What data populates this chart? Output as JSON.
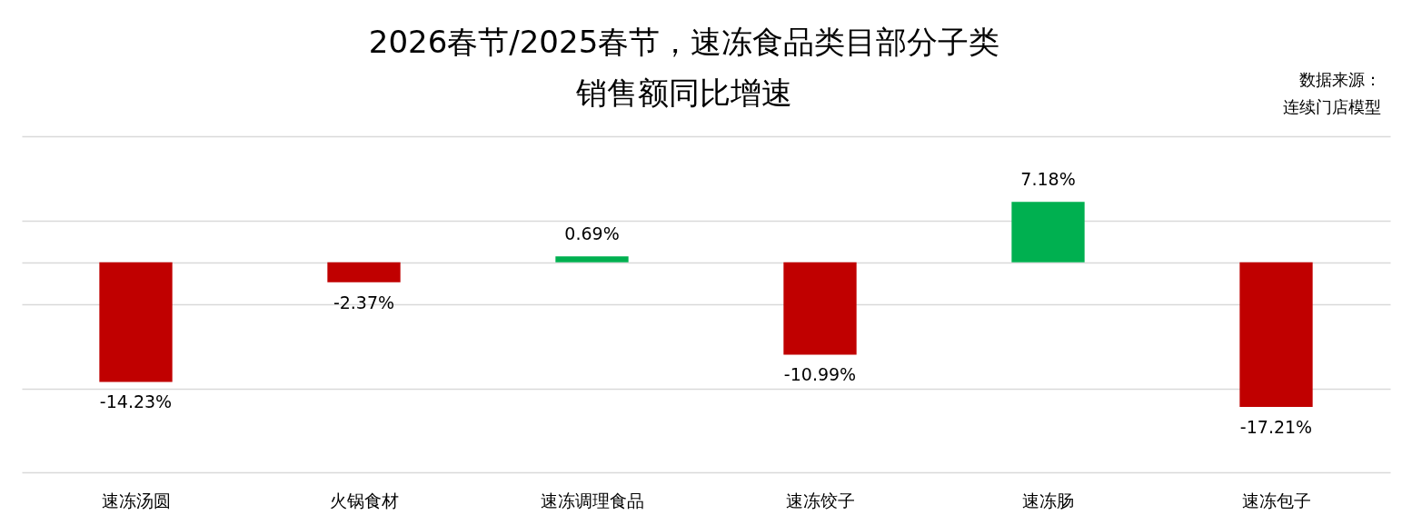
{
  "chart_data": {
    "type": "bar",
    "title": "2026春节/2025春节，速冻食品类目部分子类销售额同比增速",
    "annotations": [
      "数据来源：连续门店模型"
    ],
    "categories": [
      "速冻汤圆",
      "火锅食材",
      "速冻调理食品",
      "速冻饺子",
      "速冻肠",
      "速冻包子"
    ],
    "values": [
      -14.23,
      -2.37,
      0.69,
      -10.99,
      7.18,
      -17.21
    ],
    "colors": [
      "#c00000",
      "#c00000",
      "#00b050",
      "#c00000",
      "#00b050",
      "#c00000"
    ],
    "value_labels": [
      "-14.23%",
      "-2.37%",
      "0.69%",
      "-10.99%",
      "7.18%",
      "-17.21%"
    ],
    "ylim": [
      -25,
      15
    ],
    "yticks": [
      {
        "value": 15,
        "label": null
      },
      {
        "value": 5,
        "label": null
      },
      {
        "value": 0,
        "label": null
      },
      {
        "value": -5,
        "label": null
      },
      {
        "value": -15,
        "label": null
      },
      {
        "value": -25,
        "label": null
      }
    ],
    "grid": true,
    "tick_labels": "x"
  }
}
